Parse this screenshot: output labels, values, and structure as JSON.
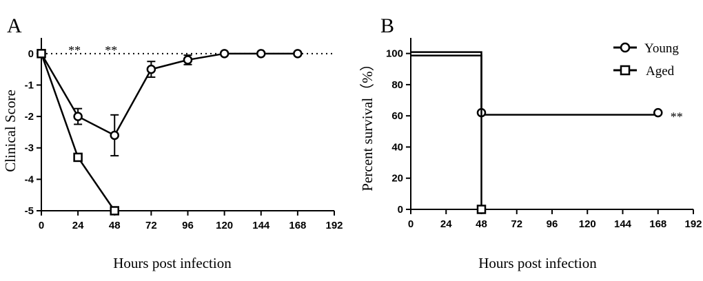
{
  "chart_data": [
    {
      "type": "line",
      "panel_label": "A",
      "xlabel": "Hours post infection",
      "ylabel": "Clinical Score",
      "xlim": [
        0,
        192
      ],
      "ylim": [
        -5,
        0.5
      ],
      "x_ticks": [
        0,
        24,
        48,
        72,
        96,
        120,
        144,
        168,
        192
      ],
      "y_ticks": [
        0,
        -1,
        -2,
        -3,
        -4,
        -5
      ],
      "reference_line": {
        "y": 0,
        "style": "dotted"
      },
      "series": [
        {
          "marker": "circle",
          "x": [
            0,
            24,
            48,
            72,
            96,
            120,
            144,
            168
          ],
          "y": [
            0,
            -2.0,
            -2.6,
            -0.5,
            -0.2,
            0,
            0,
            0
          ],
          "err": [
            0,
            0.25,
            0.65,
            0.25,
            0.15,
            0,
            0,
            0
          ]
        },
        {
          "marker": "square",
          "x": [
            0,
            24,
            48
          ],
          "y": [
            0,
            -3.3,
            -5.0
          ],
          "err": [
            0,
            0.05,
            0
          ]
        }
      ],
      "annotations": [
        {
          "text": "**",
          "x": 24
        },
        {
          "text": "**",
          "x": 48
        }
      ]
    },
    {
      "type": "line",
      "step": true,
      "panel_label": "B",
      "xlabel": "Hours post infection",
      "ylabel": "Percent survival（%）",
      "xlim": [
        0,
        192
      ],
      "ylim": [
        0,
        110
      ],
      "x_ticks": [
        0,
        24,
        48,
        72,
        96,
        120,
        144,
        168,
        192
      ],
      "y_ticks": [
        0,
        20,
        40,
        60,
        80,
        100
      ],
      "legend_position": "top-right",
      "series": [
        {
          "name": "Young",
          "marker": "circle",
          "x": [
            0,
            48,
            168
          ],
          "y": [
            100,
            62,
            62
          ]
        },
        {
          "name": "Aged",
          "marker": "square",
          "x": [
            0,
            48
          ],
          "y": [
            100,
            0
          ]
        }
      ],
      "annotations": [
        {
          "text": "**",
          "x": 168,
          "y": 62
        }
      ]
    }
  ]
}
